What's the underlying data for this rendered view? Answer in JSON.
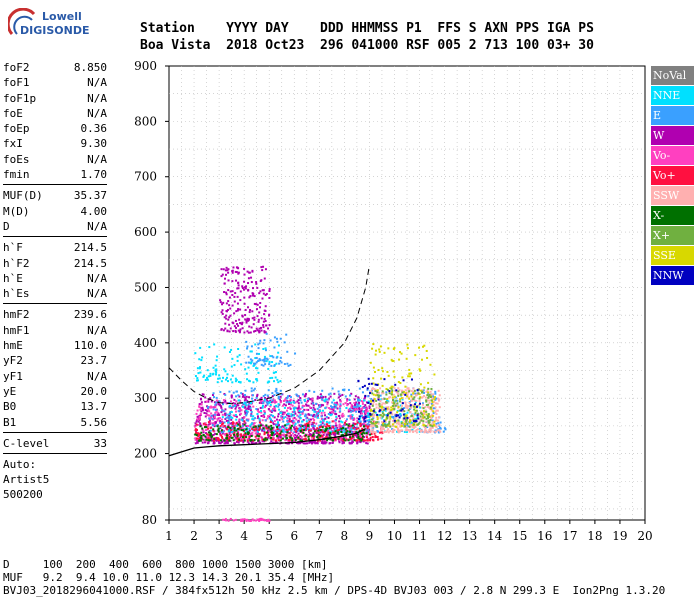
{
  "logo": {
    "line1": "Lowell",
    "line2": "DIGISONDE"
  },
  "header": {
    "row1": "Station    YYYY DAY    DDD HHMMSS P1  FFS S AXN PPS IGA PS",
    "row2": "Boa Vista  2018 Oct23  296 041000 RSF 005 2 713 100 03+ 30"
  },
  "params": {
    "g1": [
      [
        "foF2",
        "8.850"
      ],
      [
        "foF1",
        "N/A"
      ],
      [
        "foF1p",
        "N/A"
      ],
      [
        "foE",
        "N/A"
      ],
      [
        "foEp",
        "0.36"
      ],
      [
        "fxI",
        "9.30"
      ],
      [
        "foEs",
        "N/A"
      ],
      [
        "fmin",
        "1.70"
      ]
    ],
    "g2": [
      [
        "MUF(D)",
        "35.37"
      ],
      [
        "M(D)",
        "4.00"
      ],
      [
        "D",
        "N/A"
      ]
    ],
    "g3": [
      [
        "h`F",
        "214.5"
      ],
      [
        "h`F2",
        "214.5"
      ],
      [
        "h`E",
        "N/A"
      ],
      [
        "h`Es",
        "N/A"
      ]
    ],
    "g4": [
      [
        "hmF2",
        "239.6"
      ],
      [
        "hmF1",
        "N/A"
      ],
      [
        "hmE",
        "110.0"
      ],
      [
        "yF2",
        "23.7"
      ],
      [
        "yF1",
        "N/A"
      ],
      [
        "yE",
        "20.0"
      ],
      [
        "B0",
        "13.7"
      ],
      [
        "B1",
        "5.56"
      ]
    ],
    "g5": [
      [
        "C-level",
        "33"
      ]
    ],
    "auto": [
      "Auto:",
      "Artist5",
      "500200"
    ]
  },
  "legend": [
    {
      "label": "NoVal",
      "color": "#808080"
    },
    {
      "label": "NNE",
      "color": "#00e0ff"
    },
    {
      "label": "E",
      "color": "#3aa0ff"
    },
    {
      "label": "W",
      "color": "#b000b0"
    },
    {
      "label": "Vo-",
      "color": "#ff40c0"
    },
    {
      "label": "Vo+",
      "color": "#ff1040"
    },
    {
      "label": "SSW",
      "color": "#ffb0b0"
    },
    {
      "label": "X-",
      "color": "#007000"
    },
    {
      "label": "X+",
      "color": "#70b040"
    },
    {
      "label": "SSE",
      "color": "#d8d800"
    },
    {
      "label": "NNW",
      "color": "#0000c0"
    }
  ],
  "footer": {
    "row1": "D     100  200  400  600  800 1000 1500 3000 [km]",
    "row2": "MUF   9.2  9.4 10.0 11.0 12.3 14.3 20.1 35.4 [MHz]",
    "row3": "BVJ03_2018296041000.RSF / 384fx512h 50 kHz 2.5 km / DPS-4D BVJ03 003 / 2.8 N 299.3 E  Ion2Png 1.3.20"
  },
  "chart_data": {
    "type": "scatter",
    "title": "",
    "xlabel": "",
    "ylabel": "",
    "xlim": [
      1,
      20
    ],
    "ylim": [
      80,
      900
    ],
    "x_ticks": [
      1,
      2,
      3,
      4,
      5,
      6,
      7,
      8,
      9,
      10,
      11,
      12,
      13,
      14,
      15,
      16,
      17,
      18,
      19,
      20
    ],
    "y_ticks": [
      80,
      200,
      300,
      400,
      500,
      600,
      700,
      800,
      900
    ],
    "grid": true,
    "legend_placement": "right",
    "profile_curve": {
      "x": [
        1.0,
        1.5,
        2.0,
        2.5,
        3.0,
        4.0,
        5.0,
        6.0,
        7.0,
        8.0,
        8.5,
        8.85
      ],
      "y": [
        196,
        203,
        210,
        212,
        214,
        216,
        218,
        220,
        225,
        232,
        237,
        245
      ]
    },
    "dashed_curve": {
      "x": [
        1.0,
        1.5,
        2.0,
        2.5,
        3.0,
        3.5,
        4.0,
        5.0,
        6.0,
        7.0,
        8.0,
        8.5,
        8.85,
        9.0
      ],
      "y": [
        355,
        332,
        312,
        300,
        292,
        290,
        292,
        300,
        318,
        350,
        400,
        445,
        500,
        540
      ]
    },
    "echo_clusters": [
      {
        "color": "#b000b0",
        "xr": [
          2.0,
          9.0
        ],
        "yr": [
          220,
          310
        ],
        "n": 900
      },
      {
        "color": "#ff40c0",
        "xr": [
          2.0,
          9.0
        ],
        "yr": [
          225,
          300
        ],
        "n": 400
      },
      {
        "color": "#3aa0ff",
        "xr": [
          2.5,
          12.0
        ],
        "yr": [
          240,
          320
        ],
        "n": 400
      },
      {
        "color": "#00e0ff",
        "xr": [
          3.0,
          11.0
        ],
        "yr": [
          240,
          300
        ],
        "n": 200
      },
      {
        "color": "#ff1040",
        "xr": [
          2.0,
          9.5
        ],
        "yr": [
          225,
          260
        ],
        "n": 250
      },
      {
        "color": "#007000",
        "xr": [
          2.0,
          9.0
        ],
        "yr": [
          225,
          255
        ],
        "n": 200
      },
      {
        "color": "#ffb0b0",
        "xr": [
          9.0,
          11.8
        ],
        "yr": [
          240,
          320
        ],
        "n": 350
      },
      {
        "color": "#d8d800",
        "xr": [
          9.0,
          11.6
        ],
        "yr": [
          250,
          400
        ],
        "n": 160
      },
      {
        "color": "#70b040",
        "xr": [
          9.0,
          11.5
        ],
        "yr": [
          250,
          320
        ],
        "n": 140
      },
      {
        "color": "#0000c0",
        "xr": [
          8.5,
          11.0
        ],
        "yr": [
          260,
          340
        ],
        "n": 60
      },
      {
        "color": "#b000b0",
        "xr": [
          3.0,
          5.0
        ],
        "yr": [
          420,
          540
        ],
        "n": 220
      },
      {
        "color": "#00e0ff",
        "xr": [
          2.0,
          5.5
        ],
        "yr": [
          330,
          400
        ],
        "n": 120
      },
      {
        "color": "#3aa0ff",
        "xr": [
          4.0,
          6.0
        ],
        "yr": [
          360,
          420
        ],
        "n": 60
      },
      {
        "color": "#ff40c0",
        "xr": [
          3.0,
          5.0
        ],
        "yr": [
          80,
          84
        ],
        "n": 40
      }
    ]
  }
}
